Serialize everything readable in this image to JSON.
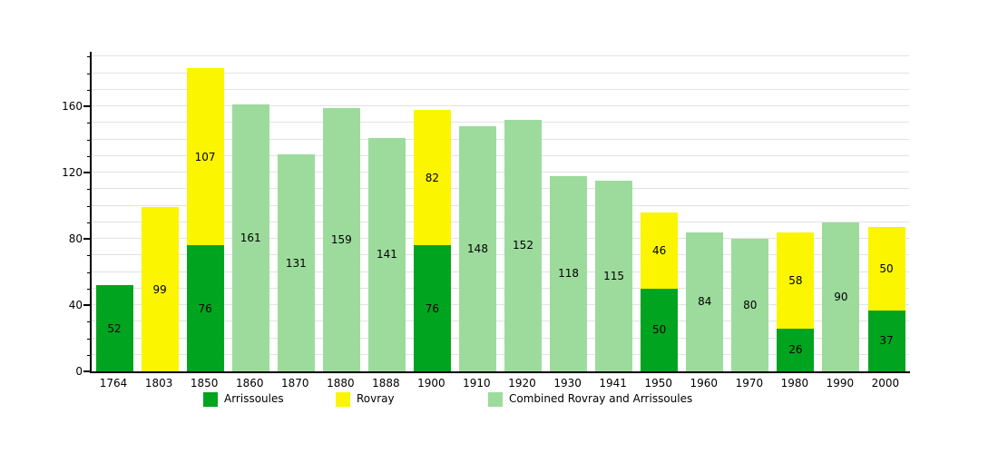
{
  "chart_data": {
    "type": "bar",
    "stacked": true,
    "title": "",
    "xlabel": "",
    "ylabel": "",
    "categories": [
      "1764",
      "1803",
      "1850",
      "1860",
      "1870",
      "1880",
      "1888",
      "1900",
      "1910",
      "1920",
      "1930",
      "1941",
      "1950",
      "1960",
      "1970",
      "1980",
      "1990",
      "2000"
    ],
    "series": [
      {
        "key": "arrissoules",
        "name": "Arrissoules",
        "color": "#00A41E",
        "values": [
          52,
          null,
          76,
          null,
          null,
          null,
          null,
          76,
          null,
          null,
          null,
          null,
          50,
          null,
          null,
          26,
          null,
          37
        ]
      },
      {
        "key": "rovray",
        "name": "Rovray",
        "color": "#FBF500",
        "values": [
          null,
          99,
          107,
          null,
          null,
          null,
          null,
          82,
          null,
          null,
          null,
          null,
          46,
          null,
          null,
          58,
          null,
          50
        ]
      },
      {
        "key": "combined",
        "name": "Combined Rovray and Arrissoules",
        "color": "#9CDB9C",
        "values": [
          null,
          null,
          null,
          161,
          131,
          159,
          141,
          null,
          148,
          152,
          118,
          115,
          null,
          84,
          80,
          null,
          90,
          null
        ]
      }
    ],
    "totals": [
      52,
      99,
      183,
      161,
      131,
      159,
      141,
      158,
      148,
      152,
      118,
      115,
      96,
      84,
      80,
      84,
      90,
      87
    ],
    "yticks": [
      0,
      40,
      80,
      120,
      160
    ],
    "ylim": [
      0,
      193
    ],
    "grid_step": 10,
    "grid": "horizontal",
    "grid_color": "#E2E2E2",
    "axis_color": "#000000",
    "legend_position": "bottom"
  }
}
